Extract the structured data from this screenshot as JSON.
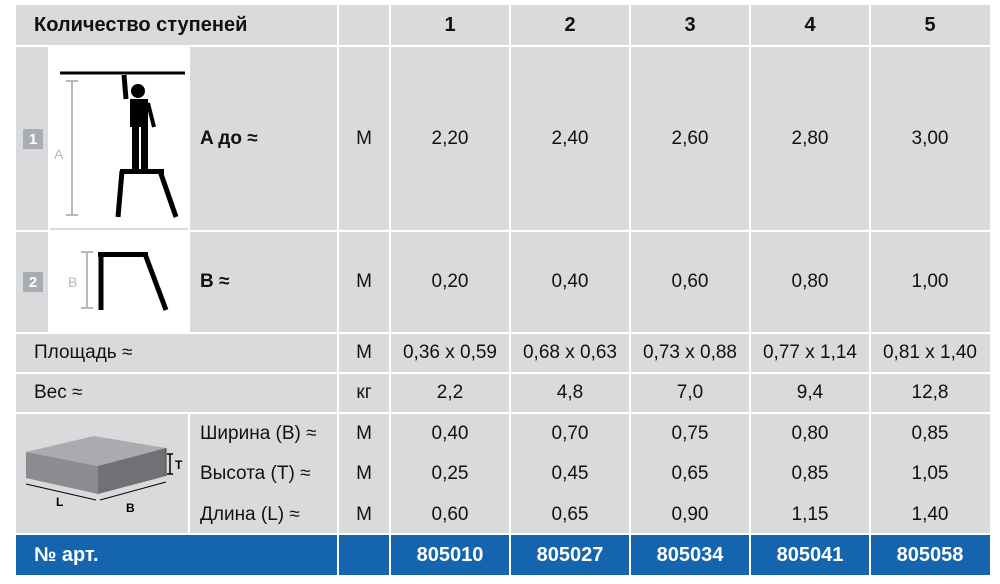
{
  "header": {
    "title": "Количество ступеней",
    "steps": [
      "1",
      "2",
      "3",
      "4",
      "5"
    ]
  },
  "row_a": {
    "badge": "1",
    "dim_letter": "A",
    "label": "A до ≈",
    "unit": "M",
    "values": [
      "2,20",
      "2,40",
      "2,60",
      "2,80",
      "3,00"
    ]
  },
  "row_b": {
    "badge": "2",
    "dim_letter": "B",
    "label": "B ≈",
    "unit": "M",
    "values": [
      "0,20",
      "0,40",
      "0,60",
      "0,80",
      "1,00"
    ]
  },
  "row_area": {
    "label": "Площадь ≈",
    "unit": "M",
    "values": [
      "0,36 x 0,59",
      "0,68 x 0,63",
      "0,73 x 0,88",
      "0,77 x 1,14",
      "0,81 x 1,40"
    ]
  },
  "row_weight": {
    "label": "Вес ≈",
    "unit": "кг",
    "values": [
      "2,2",
      "4,8",
      "7,0",
      "9,4",
      "12,8"
    ]
  },
  "package": {
    "box_labels": {
      "t": "T",
      "l": "L",
      "b": "B"
    },
    "rows": [
      {
        "label": "Ширина (B) ≈",
        "unit": "M",
        "values": [
          "0,40",
          "0,70",
          "0,75",
          "0,80",
          "0,85"
        ]
      },
      {
        "label": "Высота (T) ≈",
        "unit": "M",
        "values": [
          "0,25",
          "0,45",
          "0,65",
          "0,85",
          "1,05"
        ]
      },
      {
        "label": "Длина (L) ≈",
        "unit": "M",
        "values": [
          "0,60",
          "0,65",
          "0,90",
          "1,15",
          "1,40"
        ]
      }
    ]
  },
  "footer": {
    "label": "№ арт.",
    "articles": [
      "805010",
      "805027",
      "805034",
      "805041",
      "805058"
    ]
  },
  "colors": {
    "header_bg": "#d9dadc",
    "footer_bg": "#1565ae",
    "badge_bg": "#a9acb0"
  }
}
